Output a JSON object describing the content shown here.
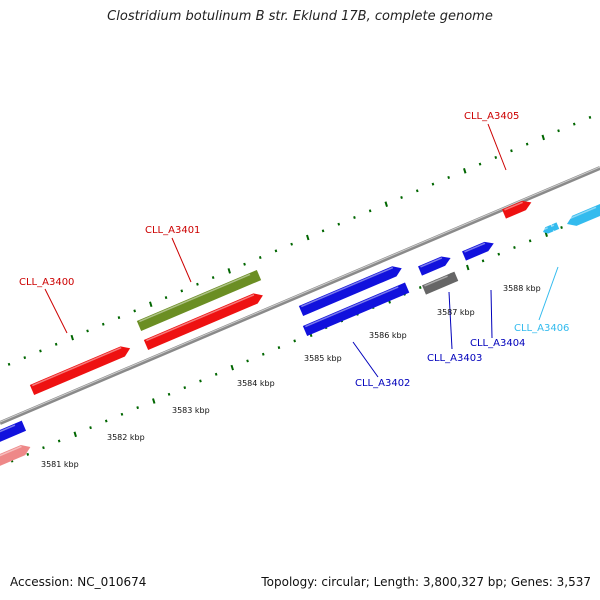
{
  "title": "Clostridium botulinum B str. Eklund 17B, complete genome",
  "footer": {
    "accession": "Accession: NC_010674",
    "summary": "Topology: circular; Length: 3,800,327 bp; Genes: 3,537"
  },
  "colors": {
    "red_gene": "#ee1111",
    "olive_gene": "#6b8e23",
    "blue_gene": "#1111dd",
    "gray_gene": "#666666",
    "cyan_gene": "#33bbee",
    "pink_gene": "#ee8888",
    "tick_green": "#006600",
    "backbone": "#888888"
  },
  "ticks": [
    {
      "label": "3581 kbp"
    },
    {
      "label": "3582 kbp"
    },
    {
      "label": "3583 kbp"
    },
    {
      "label": "3584 kbp"
    },
    {
      "label": "3585 kbp"
    },
    {
      "label": "3586 kbp"
    },
    {
      "label": "3587 kbp"
    },
    {
      "label": "3588 kbp"
    }
  ],
  "genes": [
    {
      "label": "CLL_A3400",
      "label_color": "#cc0000"
    },
    {
      "label": "CLL_A3401",
      "label_color": "#cc0000"
    },
    {
      "label": "CLL_A3402",
      "label_color": "#0000bb"
    },
    {
      "label": "CLL_A3403",
      "label_color": "#0000bb"
    },
    {
      "label": "CLL_A3404",
      "label_color": "#0000bb"
    },
    {
      "label": "CLL_A3405",
      "label_color": "#cc0000"
    },
    {
      "label": "CLL_A3406",
      "label_color": "#33bbee"
    }
  ]
}
